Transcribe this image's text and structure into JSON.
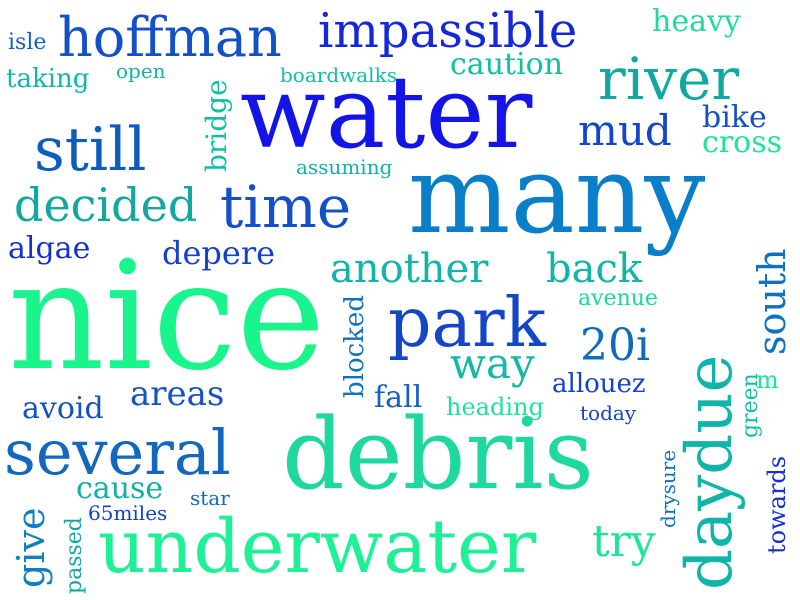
{
  "words": [
    {
      "text": "nice",
      "color": "#19f58c"
    },
    {
      "text": "many",
      "color": "#0a7ec8"
    },
    {
      "text": "water",
      "color": "#1414e6"
    },
    {
      "text": "debris",
      "color": "#1ed8a0"
    },
    {
      "text": "underwater",
      "color": "#1ef096"
    },
    {
      "text": "daydue",
      "color": "#10b4aa"
    },
    {
      "text": "several",
      "color": "#1268bc"
    },
    {
      "text": "park",
      "color": "#1446c8"
    },
    {
      "text": "time",
      "color": "#1450c8"
    },
    {
      "text": "river",
      "color": "#10a8a0"
    },
    {
      "text": "hoffman",
      "color": "#1450c8"
    },
    {
      "text": "still",
      "color": "#0e5cbc"
    },
    {
      "text": "impassible",
      "color": "#1428d8"
    },
    {
      "text": "another",
      "color": "#10b4a8"
    },
    {
      "text": "back",
      "color": "#10b4a8"
    },
    {
      "text": "decided",
      "color": "#12a8a0"
    },
    {
      "text": "south",
      "color": "#0e72c0"
    },
    {
      "text": "mud",
      "color": "#1446c8"
    },
    {
      "text": "way",
      "color": "#12b8a8"
    },
    {
      "text": "20i",
      "color": "#0e6cbe"
    },
    {
      "text": "give",
      "color": "#0e80c2"
    },
    {
      "text": "try",
      "color": "#1ee49a"
    },
    {
      "text": "areas",
      "color": "#1450c8"
    },
    {
      "text": "avoid",
      "color": "#1450c8"
    },
    {
      "text": "heavy",
      "color": "#1edc9c"
    },
    {
      "text": "caution",
      "color": "#10c0a4"
    },
    {
      "text": "algae",
      "color": "#1430d0"
    },
    {
      "text": "depere",
      "color": "#1440cc"
    },
    {
      "text": "bike",
      "color": "#1450c8"
    },
    {
      "text": "cross",
      "color": "#1ee49a"
    },
    {
      "text": "cause",
      "color": "#12b0a6"
    },
    {
      "text": "fall",
      "color": "#1460c4"
    },
    {
      "text": "allouez",
      "color": "#1440cc"
    },
    {
      "text": "taking",
      "color": "#10b8a8"
    },
    {
      "text": "bridge",
      "color": "#10c0a4"
    },
    {
      "text": "blocked",
      "color": "#0e72c0"
    },
    {
      "text": "heading",
      "color": "#1ee49a"
    },
    {
      "text": "avenue",
      "color": "#1ad8a0"
    },
    {
      "text": "towards",
      "color": "#1430d0"
    },
    {
      "text": "passed",
      "color": "#12a8a0"
    },
    {
      "text": "green",
      "color": "#10c0a4"
    },
    {
      "text": "drysure",
      "color": "#0e72c0"
    },
    {
      "text": "isle",
      "color": "#1460c4"
    },
    {
      "text": "open",
      "color": "#10b4a8"
    },
    {
      "text": "boardwalks",
      "color": "#10c0a4"
    },
    {
      "text": "assuming",
      "color": "#10b4a8"
    },
    {
      "text": "65miles",
      "color": "#1440cc"
    },
    {
      "text": "star",
      "color": "#1468c4"
    },
    {
      "text": "today",
      "color": "#1440cc"
    },
    {
      "text": "m",
      "color": "#1ee49a"
    }
  ]
}
